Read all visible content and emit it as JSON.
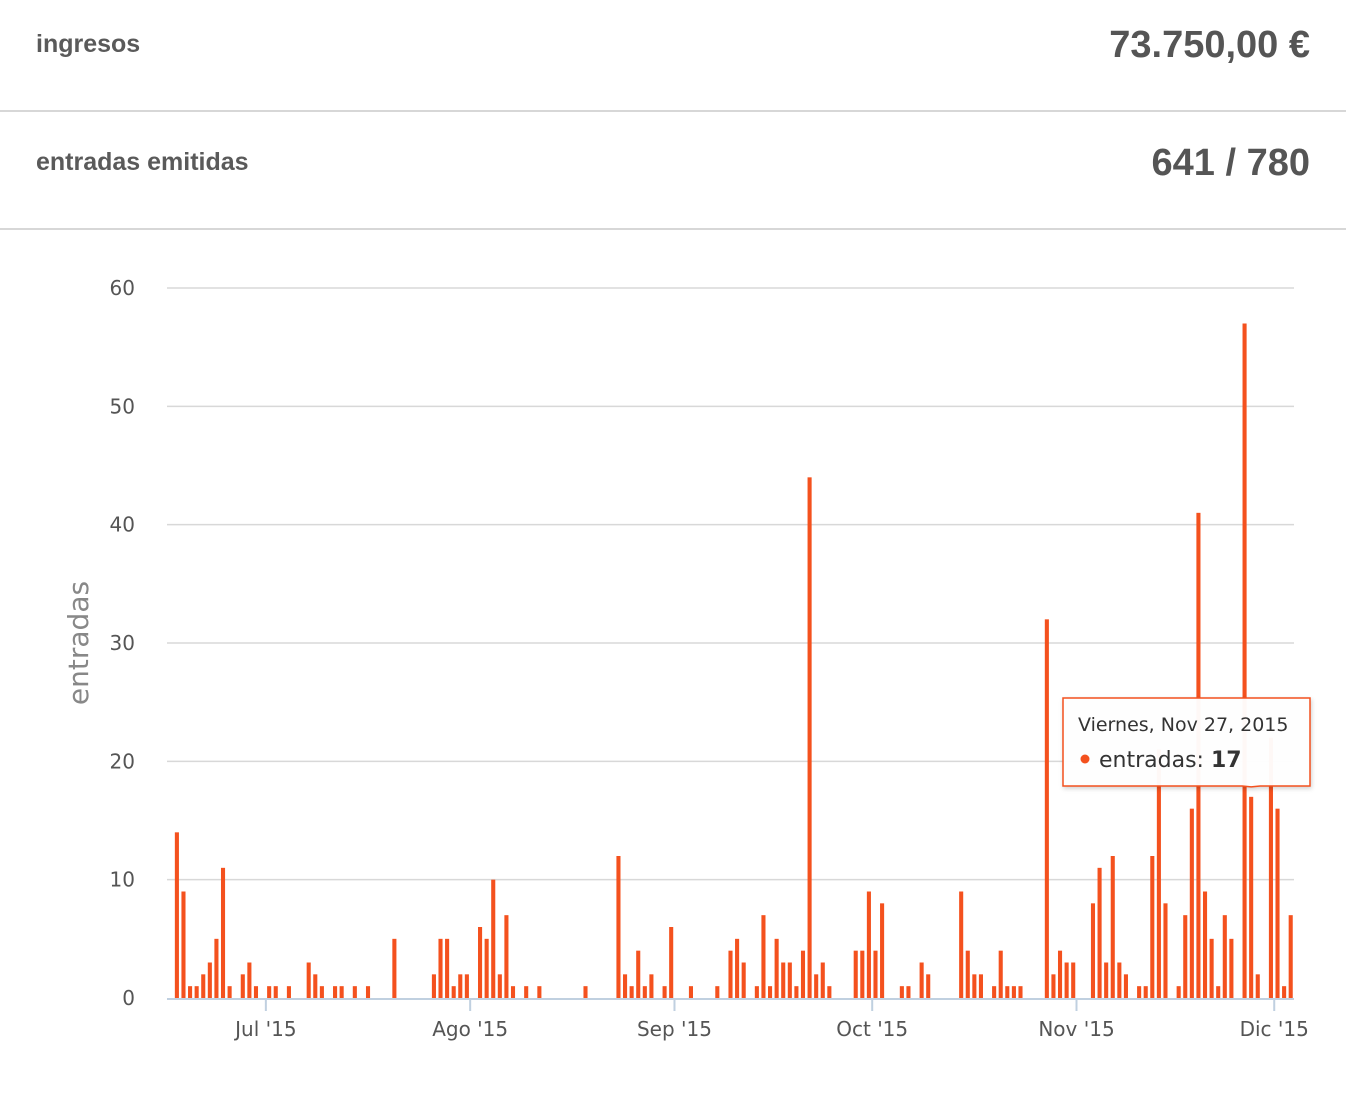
{
  "stats": {
    "revenue_label": "ingresos",
    "revenue_value": "73.750,00 €",
    "tickets_label": "entradas emitidas",
    "tickets_value": "641 / 780"
  },
  "colors": {
    "bar": "#f4511e",
    "grid": "#d8d8d8",
    "axis": "#c0d0e0"
  },
  "tooltip": {
    "date": "Viernes, Nov 27, 2015",
    "series": "entradas",
    "value": "17"
  },
  "chart_data": {
    "type": "bar",
    "ylabel": "entradas",
    "xlabel": "",
    "title": "",
    "ylim": [
      0,
      60
    ],
    "yticks": [
      0,
      10,
      20,
      30,
      40,
      50,
      60
    ],
    "grid": true,
    "x_start": "2015-06-16",
    "x_end": "2015-12-04",
    "month_ticks": [
      {
        "label": "Jul '15",
        "date": "2015-07-01"
      },
      {
        "label": "Ago '15",
        "date": "2015-08-01"
      },
      {
        "label": "Sep '15",
        "date": "2015-09-01"
      },
      {
        "label": "Oct '15",
        "date": "2015-10-01"
      },
      {
        "label": "Nov '15",
        "date": "2015-11-01"
      },
      {
        "label": "Dic '15",
        "date": "2015-12-01"
      }
    ],
    "series": [
      {
        "name": "entradas",
        "points": [
          [
            "2015-06-17",
            14
          ],
          [
            "2015-06-18",
            9
          ],
          [
            "2015-06-19",
            1
          ],
          [
            "2015-06-20",
            1
          ],
          [
            "2015-06-21",
            2
          ],
          [
            "2015-06-22",
            3
          ],
          [
            "2015-06-23",
            5
          ],
          [
            "2015-06-24",
            11
          ],
          [
            "2015-06-25",
            1
          ],
          [
            "2015-06-27",
            2
          ],
          [
            "2015-06-28",
            3
          ],
          [
            "2015-06-29",
            1
          ],
          [
            "2015-07-01",
            1
          ],
          [
            "2015-07-02",
            1
          ],
          [
            "2015-07-04",
            1
          ],
          [
            "2015-07-07",
            3
          ],
          [
            "2015-07-08",
            2
          ],
          [
            "2015-07-09",
            1
          ],
          [
            "2015-07-11",
            1
          ],
          [
            "2015-07-12",
            1
          ],
          [
            "2015-07-14",
            1
          ],
          [
            "2015-07-16",
            1
          ],
          [
            "2015-07-20",
            5
          ],
          [
            "2015-07-26",
            2
          ],
          [
            "2015-07-27",
            5
          ],
          [
            "2015-07-28",
            5
          ],
          [
            "2015-07-29",
            1
          ],
          [
            "2015-07-30",
            2
          ],
          [
            "2015-07-31",
            2
          ],
          [
            "2015-08-02",
            6
          ],
          [
            "2015-08-03",
            5
          ],
          [
            "2015-08-04",
            10
          ],
          [
            "2015-08-05",
            2
          ],
          [
            "2015-08-06",
            7
          ],
          [
            "2015-08-07",
            1
          ],
          [
            "2015-08-09",
            1
          ],
          [
            "2015-08-11",
            1
          ],
          [
            "2015-08-18",
            1
          ],
          [
            "2015-08-23",
            12
          ],
          [
            "2015-08-24",
            2
          ],
          [
            "2015-08-25",
            1
          ],
          [
            "2015-08-26",
            4
          ],
          [
            "2015-08-27",
            1
          ],
          [
            "2015-08-28",
            2
          ],
          [
            "2015-08-30",
            1
          ],
          [
            "2015-08-31",
            6
          ],
          [
            "2015-09-03",
            1
          ],
          [
            "2015-09-07",
            1
          ],
          [
            "2015-09-09",
            4
          ],
          [
            "2015-09-10",
            5
          ],
          [
            "2015-09-11",
            3
          ],
          [
            "2015-09-13",
            1
          ],
          [
            "2015-09-14",
            7
          ],
          [
            "2015-09-15",
            1
          ],
          [
            "2015-09-16",
            5
          ],
          [
            "2015-09-17",
            3
          ],
          [
            "2015-09-18",
            3
          ],
          [
            "2015-09-19",
            1
          ],
          [
            "2015-09-20",
            4
          ],
          [
            "2015-09-21",
            44
          ],
          [
            "2015-09-22",
            2
          ],
          [
            "2015-09-23",
            3
          ],
          [
            "2015-09-24",
            1
          ],
          [
            "2015-09-28",
            4
          ],
          [
            "2015-09-29",
            4
          ],
          [
            "2015-09-30",
            9
          ],
          [
            "2015-10-01",
            4
          ],
          [
            "2015-10-02",
            8
          ],
          [
            "2015-10-05",
            1
          ],
          [
            "2015-10-06",
            1
          ],
          [
            "2015-10-08",
            3
          ],
          [
            "2015-10-09",
            2
          ],
          [
            "2015-10-14",
            9
          ],
          [
            "2015-10-15",
            4
          ],
          [
            "2015-10-16",
            2
          ],
          [
            "2015-10-17",
            2
          ],
          [
            "2015-10-19",
            1
          ],
          [
            "2015-10-20",
            4
          ],
          [
            "2015-10-21",
            1
          ],
          [
            "2015-10-22",
            1
          ],
          [
            "2015-10-23",
            1
          ],
          [
            "2015-10-27",
            32
          ],
          [
            "2015-10-28",
            2
          ],
          [
            "2015-10-29",
            4
          ],
          [
            "2015-10-30",
            3
          ],
          [
            "2015-10-31",
            3
          ],
          [
            "2015-11-03",
            8
          ],
          [
            "2015-11-04",
            11
          ],
          [
            "2015-11-05",
            3
          ],
          [
            "2015-11-06",
            12
          ],
          [
            "2015-11-07",
            3
          ],
          [
            "2015-11-08",
            2
          ],
          [
            "2015-11-10",
            1
          ],
          [
            "2015-11-11",
            1
          ],
          [
            "2015-11-12",
            12
          ],
          [
            "2015-11-13",
            21
          ],
          [
            "2015-11-14",
            8
          ],
          [
            "2015-11-16",
            1
          ],
          [
            "2015-11-17",
            7
          ],
          [
            "2015-11-18",
            16
          ],
          [
            "2015-11-19",
            41
          ],
          [
            "2015-11-20",
            9
          ],
          [
            "2015-11-21",
            5
          ],
          [
            "2015-11-22",
            1
          ],
          [
            "2015-11-23",
            7
          ],
          [
            "2015-11-24",
            5
          ],
          [
            "2015-11-26",
            57
          ],
          [
            "2015-11-27",
            17
          ],
          [
            "2015-11-28",
            2
          ],
          [
            "2015-11-30",
            22
          ],
          [
            "2015-12-01",
            16
          ],
          [
            "2015-12-02",
            1
          ],
          [
            "2015-12-03",
            7
          ]
        ]
      }
    ]
  }
}
